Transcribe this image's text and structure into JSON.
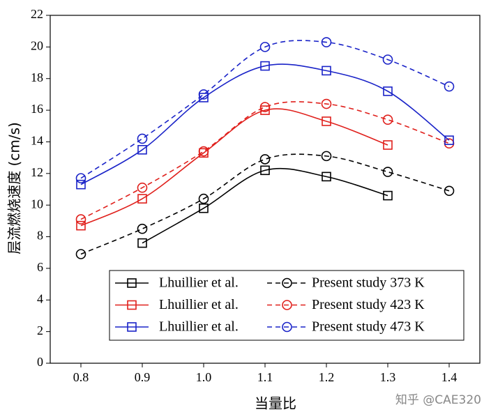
{
  "chart_data": {
    "type": "line",
    "xlabel": "当量比",
    "ylabel": "层流燃烧速度 (cm/s)",
    "watermark": "知乎 @CAE320",
    "x": [
      0.8,
      0.9,
      1.0,
      1.1,
      1.2,
      1.3,
      1.4
    ],
    "xlim": [
      0.75,
      1.45
    ],
    "ylim": [
      0,
      22
    ],
    "xticks": [
      0.8,
      0.9,
      {
        "value": 1.0,
        "label": "1.0"
      },
      1.1,
      1.2,
      1.3,
      1.4
    ],
    "yticks": [
      0,
      2,
      4,
      6,
      8,
      10,
      12,
      14,
      16,
      18,
      20,
      22
    ],
    "series": [
      {
        "name": "Lhuillier et al.",
        "color": "#000000",
        "marker": "square",
        "linestyle": "solid",
        "values": [
          null,
          7.6,
          9.8,
          12.2,
          11.8,
          10.6,
          null
        ]
      },
      {
        "name": "Present study 373 K",
        "color": "#000000",
        "marker": "circle",
        "linestyle": "dashed",
        "values": [
          6.9,
          8.5,
          10.4,
          12.9,
          13.1,
          12.1,
          10.9
        ]
      },
      {
        "name": "Lhuillier et al.",
        "color": "#e0201c",
        "marker": "square",
        "linestyle": "solid",
        "values": [
          8.7,
          10.4,
          13.3,
          16.0,
          15.3,
          13.8,
          null
        ]
      },
      {
        "name": "Present study 423 K",
        "color": "#e0201c",
        "marker": "circle",
        "linestyle": "dashed",
        "values": [
          9.1,
          11.1,
          13.4,
          16.2,
          16.4,
          15.4,
          13.9
        ]
      },
      {
        "name": "Lhuillier et al.",
        "color": "#1a23c8",
        "marker": "square",
        "linestyle": "solid",
        "values": [
          11.3,
          13.5,
          16.8,
          18.8,
          18.5,
          17.2,
          14.1
        ]
      },
      {
        "name": "Present study 473 K",
        "color": "#1a23c8",
        "marker": "circle",
        "linestyle": "dashed",
        "values": [
          11.7,
          14.2,
          17.0,
          20.0,
          20.3,
          19.2,
          17.5
        ]
      }
    ]
  }
}
